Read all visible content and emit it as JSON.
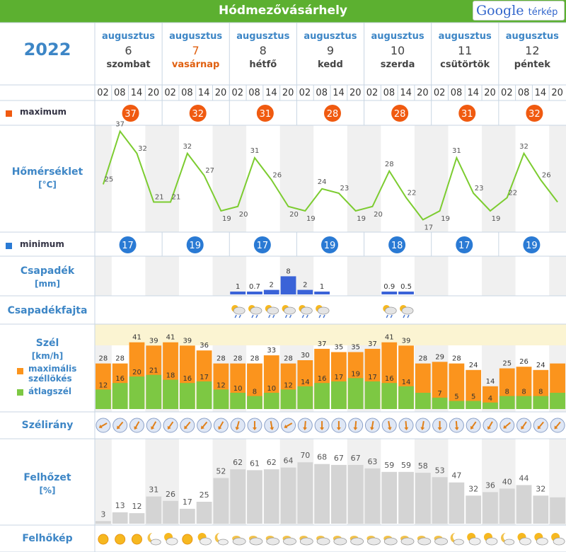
{
  "header": {
    "city": "Hódmezővásárhely",
    "map_link_google": "Google",
    "map_link_text": "térkép",
    "year": "2022"
  },
  "days": [
    {
      "month": "augusztus",
      "day": "6",
      "weekday": "szombat",
      "sunday": false
    },
    {
      "month": "augusztus",
      "day": "7",
      "weekday": "vasárnap",
      "sunday": true
    },
    {
      "month": "augusztus",
      "day": "8",
      "weekday": "hétfő",
      "sunday": false
    },
    {
      "month": "augusztus",
      "day": "9",
      "weekday": "kedd",
      "sunday": false
    },
    {
      "month": "augusztus",
      "day": "10",
      "weekday": "szerda",
      "sunday": false
    },
    {
      "month": "augusztus",
      "day": "11",
      "weekday": "csütörtök",
      "sunday": false
    },
    {
      "month": "augusztus",
      "day": "12",
      "weekday": "péntek",
      "sunday": false
    }
  ],
  "hours": [
    "02",
    "08",
    "14",
    "20"
  ],
  "labels": {
    "maximum": "maximum",
    "temperature": "Hőmérséklet",
    "temperature_unit": "[°C]",
    "minimum": "minimum",
    "precip": "Csapadék",
    "precip_unit": "[mm]",
    "precip_type": "Csapadékfajta",
    "wind": "Szél",
    "wind_unit": "[km/h]",
    "gust_legend": "maximális széllökés",
    "avg_legend": "átlagszél",
    "wind_dir": "Szélirány",
    "cloud": "Felhőzet",
    "cloud_unit": "[%]",
    "cloud_img": "Felhőkép"
  },
  "colors": {
    "header_green": "#5cb030",
    "label_blue": "#3d86c6",
    "max_orange": "#f05a10",
    "min_blue": "#2a7ad4",
    "temp_line": "#7ccc30",
    "precip_bar": "#3a63d8",
    "gust": "#fb941d",
    "avg_wind": "#7dc843",
    "cloud_bar": "#d4d4d4"
  },
  "daily_max": [
    37,
    32,
    31,
    28,
    28,
    31,
    32
  ],
  "daily_min": [
    17,
    19,
    17,
    19,
    18,
    17,
    19
  ],
  "chart_data": [
    {
      "type": "line",
      "name": "temperature",
      "ylabel": "Hőmérséklet [°C]",
      "values": [
        25,
        37,
        32,
        21,
        21,
        32,
        27,
        19,
        20,
        31,
        26,
        20,
        19,
        24,
        23,
        19,
        20,
        28,
        22,
        17,
        19,
        31,
        23,
        19,
        22,
        32,
        26,
        21
      ],
      "labels": [
        "25",
        "37",
        "32",
        "21",
        "21",
        "32",
        "27",
        "19",
        "20",
        "31",
        "26",
        "20",
        "19",
        "24",
        "23",
        "19",
        "20",
        "28",
        "22",
        "17",
        "19",
        "31",
        "23",
        "19",
        "22",
        "32",
        "26",
        ""
      ]
    },
    {
      "type": "bar",
      "name": "precipitation",
      "ylabel": "Csapadék [mm]",
      "values": [
        0,
        0,
        0,
        0,
        0,
        0,
        0,
        0,
        1,
        0.7,
        2,
        8,
        2,
        1,
        0,
        0,
        0,
        0.9,
        0.5,
        0,
        0,
        0,
        0,
        0,
        0,
        0,
        0,
        0
      ],
      "labels": [
        "",
        "",
        "",
        "",
        "",
        "",
        "",
        "",
        "1",
        "0.7",
        "2",
        "8",
        "2",
        "1",
        "",
        "",
        "",
        "0.9",
        "0.5",
        "",
        "",
        "",
        "",
        "",
        "",
        "",
        "",
        ""
      ]
    },
    {
      "type": "bar",
      "name": "wind",
      "ylabel": "Szél [km/h]",
      "series": [
        {
          "name": "maximális széllökés",
          "values": [
            28,
            28,
            41,
            39,
            41,
            39,
            36,
            28,
            28,
            28,
            33,
            28,
            30,
            37,
            35,
            35,
            37,
            41,
            39,
            28,
            29,
            28,
            24,
            14,
            25,
            26,
            24,
            28
          ]
        },
        {
          "name": "átlagszél",
          "values": [
            12,
            16,
            20,
            21,
            18,
            16,
            17,
            12,
            10,
            8,
            10,
            12,
            14,
            16,
            17,
            19,
            17,
            16,
            14,
            10,
            7,
            5,
            5,
            4,
            8,
            8,
            8,
            10
          ]
        }
      ],
      "gust_labels": [
        "28",
        "28",
        "41",
        "39",
        "41",
        "39",
        "36",
        "28",
        "28",
        "28",
        "33",
        "28",
        "30",
        "37",
        "35",
        "35",
        "37",
        "41",
        "39",
        "28",
        "29",
        "28",
        "24",
        "14",
        "25",
        "26",
        "24",
        ""
      ],
      "avg_labels": [
        "12",
        "16",
        "20",
        "21",
        "18",
        "16",
        "17",
        "12",
        "10",
        "8",
        "10",
        "12",
        "14",
        "16",
        "17",
        "19",
        "17",
        "16",
        "14",
        "",
        "7",
        "5",
        "5",
        "4",
        "8",
        "8",
        "8",
        ""
      ]
    },
    {
      "type": "bar",
      "name": "cloud",
      "ylabel": "Felhőzet [%]",
      "values": [
        3,
        13,
        12,
        31,
        26,
        17,
        25,
        52,
        62,
        61,
        62,
        64,
        70,
        68,
        67,
        67,
        63,
        59,
        59,
        58,
        53,
        47,
        32,
        36,
        40,
        44,
        32,
        30
      ],
      "labels": [
        "3",
        "13",
        "12",
        "31",
        "26",
        "17",
        "25",
        "52",
        "62",
        "61",
        "62",
        "64",
        "70",
        "68",
        "67",
        "67",
        "63",
        "59",
        "59",
        "58",
        "53",
        "47",
        "32",
        "36",
        "40",
        "44",
        "32",
        ""
      ]
    }
  ],
  "wind_dir_deg": [
    240,
    220,
    210,
    210,
    215,
    220,
    220,
    210,
    195,
    180,
    170,
    240,
    185,
    180,
    180,
    185,
    190,
    170,
    175,
    190,
    180,
    175,
    215,
    210,
    230,
    215,
    220,
    220
  ],
  "precip_type_icons": [
    "",
    "",
    "",
    "",
    "",
    "",
    "",
    "",
    "sun-shower-icon",
    "sun-shower-icon",
    "sun-shower-icon",
    "sun-shower-icon",
    "sun-shower-icon",
    "sun-shower-icon",
    "",
    "",
    "",
    "sun-shower-icon",
    "sun-shower-icon",
    "",
    "",
    "",
    "",
    "",
    "",
    "",
    "",
    ""
  ],
  "cloud_icons": [
    "sun-icon",
    "sun-icon",
    "sun-icon",
    "moon-cloud-icon",
    "sun-cloud-icon",
    "sun-icon",
    "sun-cloud-icon",
    "moon-cloud-icon",
    "cloud-icon",
    "cloud-icon",
    "cloud-icon",
    "cloud-icon",
    "cloud-icon",
    "cloud-icon",
    "cloud-icon",
    "cloud-icon",
    "cloud-icon",
    "cloud-icon",
    "cloud-icon",
    "cloud-icon",
    "cloud-icon",
    "moon-cloud-icon",
    "sun-cloud-icon",
    "sun-cloud-icon",
    "moon-cloud-icon",
    "sun-cloud-icon",
    "sun-cloud-icon",
    "sun-cloud-icon"
  ]
}
